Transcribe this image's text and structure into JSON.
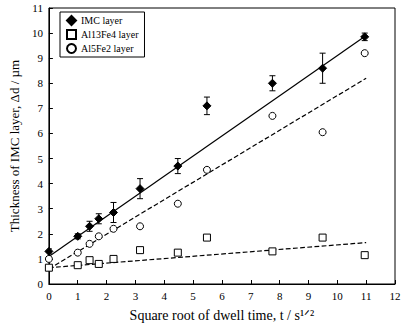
{
  "chart_data": {
    "type": "scatter",
    "x_label": "Square root of dwell time, t / s¹ᐟ²",
    "y_label": "Thickness of IMC layer, Δd / µm",
    "xlim": [
      0,
      12
    ],
    "xticks": [
      0,
      1,
      2,
      3,
      4,
      5,
      6,
      7,
      8,
      9,
      10,
      11,
      12
    ],
    "ylim": [
      0,
      11
    ],
    "yticks": [
      0,
      1,
      2,
      3,
      4,
      5,
      6,
      7,
      8,
      9,
      10,
      11
    ],
    "legend": "upper left",
    "grid": false,
    "x": [
      0,
      1,
      1.41,
      1.73,
      2.24,
      3.16,
      4.47,
      5.48,
      7.75,
      9.49,
      10.95
    ],
    "series": [
      {
        "name": "IMC layer",
        "color": "#000000",
        "marker": "diamond",
        "line_style": "solid",
        "values": [
          1.3,
          1.9,
          2.3,
          2.6,
          2.85,
          3.8,
          4.7,
          7.1,
          8.0,
          8.6,
          9.85
        ],
        "errors": [
          0.1,
          0.1,
          0.2,
          0.2,
          0.4,
          0.4,
          0.3,
          0.35,
          0.3,
          0.6,
          0.15
        ],
        "fit": {
          "x": [
            0,
            11
          ],
          "values": [
            1.1,
            9.9
          ]
        }
      },
      {
        "name": "Al13Fe4 layer",
        "color": "#000000",
        "marker": "open_square",
        "line_style": "dashed",
        "values": [
          0.65,
          0.75,
          0.95,
          0.8,
          1.0,
          1.35,
          1.25,
          1.85,
          1.3,
          1.85,
          1.15
        ],
        "fit": {
          "x": [
            0,
            11
          ],
          "values": [
            0.65,
            1.65
          ]
        }
      },
      {
        "name": "Al5Fe2 layer",
        "color": "#000000",
        "marker": "open_circle",
        "line_style": "dashed",
        "values": [
          1.0,
          1.25,
          1.6,
          1.9,
          2.2,
          2.3,
          3.2,
          4.55,
          6.7,
          6.05,
          9.2
        ],
        "fit": {
          "x": [
            0,
            11
          ],
          "values": [
            0.6,
            8.2
          ]
        }
      }
    ]
  }
}
